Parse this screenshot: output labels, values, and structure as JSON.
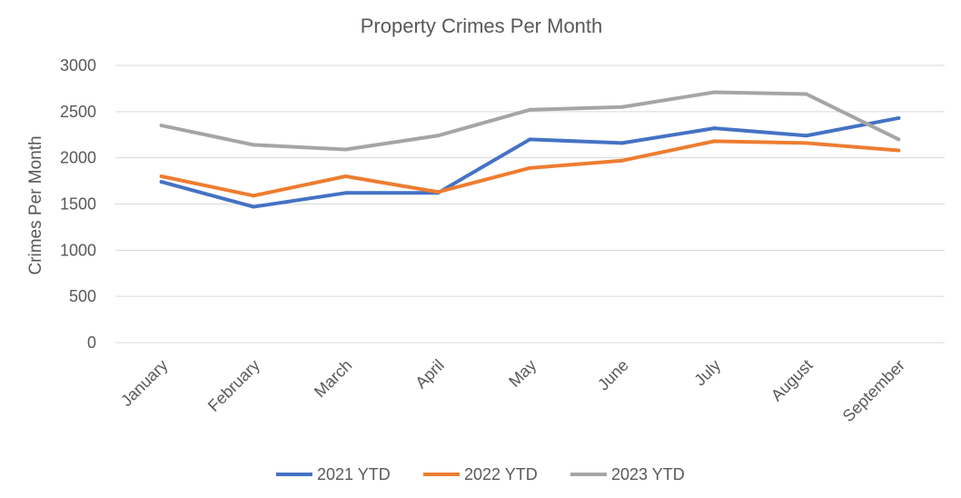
{
  "chart_data": {
    "type": "line",
    "title": "Property Crimes Per Month",
    "xlabel": "",
    "ylabel": "Crimes Per Month",
    "categories": [
      "January",
      "February",
      "March",
      "April",
      "May",
      "June",
      "July",
      "August",
      "September"
    ],
    "ylim": [
      0,
      3000
    ],
    "yticks": [
      0,
      500,
      1000,
      1500,
      2000,
      2500,
      3000
    ],
    "grid": true,
    "legend_position": "bottom",
    "series": [
      {
        "name": "2021 YTD",
        "color": "#4472C4",
        "values": [
          1740,
          1470,
          1620,
          1620,
          2200,
          2160,
          2320,
          2240,
          2430
        ]
      },
      {
        "name": "2022 YTD",
        "color": "#ED7D31",
        "values": [
          1800,
          1590,
          1800,
          1630,
          1890,
          1970,
          2180,
          2160,
          2080
        ]
      },
      {
        "name": "2023 YTD",
        "color": "#A5A5A5",
        "values": [
          2350,
          2140,
          2090,
          2240,
          2520,
          2550,
          2710,
          2690,
          2200
        ]
      }
    ]
  }
}
